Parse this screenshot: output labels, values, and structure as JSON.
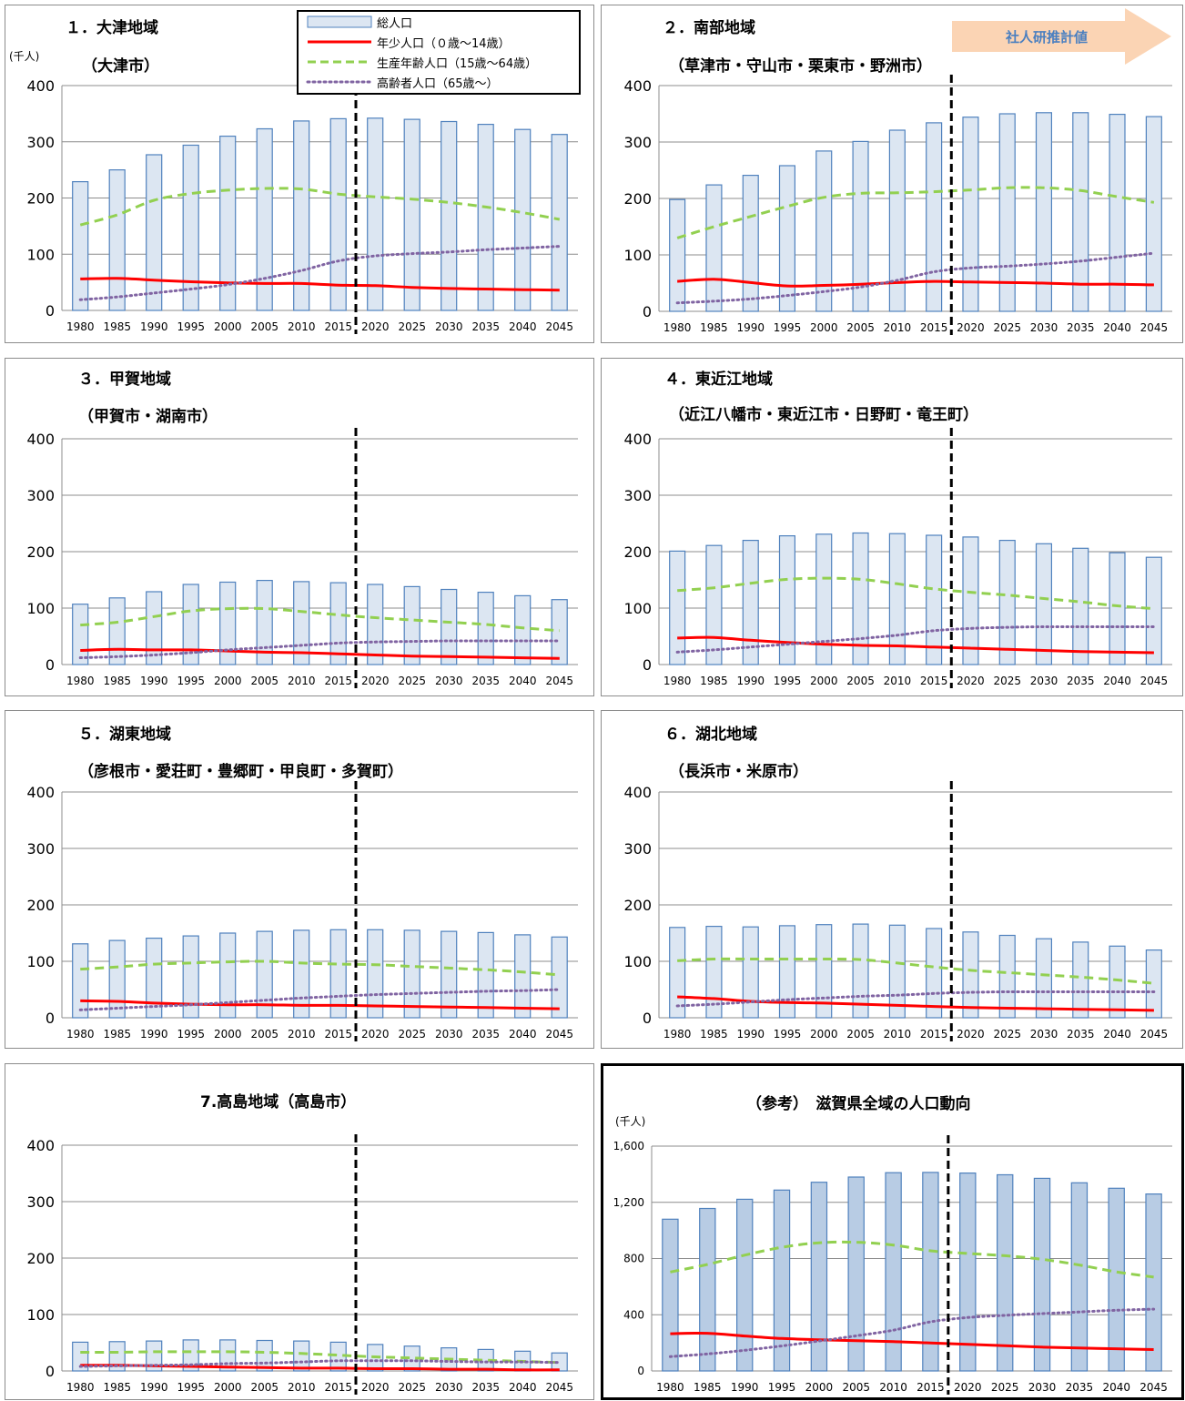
{
  "common": {
    "x_ticks": [
      "1980",
      "1985",
      "1990",
      "1995",
      "2000",
      "2005",
      "2010",
      "2015",
      "2020",
      "2025",
      "2030",
      "2035",
      "2040",
      "2045"
    ],
    "unit": "(千人)",
    "colors": {
      "bar_fill": "#dce6f2",
      "bar_stroke": "#4f81bd",
      "ref_bar_fill": "#b8cce4",
      "young": "#ff0000",
      "working": "#92d050",
      "elderly": "#8064a2"
    }
  },
  "legend": {
    "total": "総人口",
    "young": "年少人口（０歳～14歳）",
    "working": "生産年齢人口（15歳～64歳）",
    "elderly": "高齢者人口（65歳～）"
  },
  "projection_label": "社人研推計値",
  "chart_data": [
    {
      "type": "bar",
      "title": "１．大津地域",
      "subtitle": "（大津市）",
      "ylim": [
        0,
        400
      ],
      "yticks": [
        "0",
        "100",
        "200",
        "300",
        "400"
      ],
      "categories": [
        "1980",
        "1985",
        "1990",
        "1995",
        "2000",
        "2005",
        "2010",
        "2015",
        "2020",
        "2025",
        "2030",
        "2035",
        "2040",
        "2045"
      ],
      "series": [
        {
          "values": [
            229,
            250,
            277,
            294,
            310,
            323,
            337,
            341,
            342,
            340,
            336,
            331,
            322,
            313
          ]
        },
        {
          "values": [
            56,
            57,
            54,
            51,
            49,
            48,
            48,
            45,
            44,
            41,
            39,
            38,
            37,
            36
          ]
        },
        {
          "values": [
            152,
            170,
            196,
            208,
            214,
            217,
            216,
            207,
            202,
            198,
            192,
            184,
            174,
            162
          ]
        },
        {
          "values": [
            19,
            24,
            31,
            38,
            46,
            57,
            71,
            88,
            97,
            101,
            104,
            108,
            111,
            114
          ]
        }
      ]
    },
    {
      "type": "bar",
      "title": "２．南部地域",
      "subtitle": "（草津市・守山市・栗東市・野洲市）",
      "ylim": [
        0,
        400
      ],
      "yticks": [
        "0",
        "100",
        "200",
        "300",
        "400"
      ],
      "categories": [
        "1980",
        "1985",
        "1990",
        "1995",
        "2000",
        "2005",
        "2010",
        "2015",
        "2020",
        "2025",
        "2030",
        "2035",
        "2040",
        "2045"
      ],
      "series": [
        {
          "values": [
            198,
            224,
            241,
            258,
            284,
            301,
            321,
            334,
            344,
            350,
            352,
            352,
            349,
            345
          ]
        },
        {
          "values": [
            53,
            57,
            51,
            45,
            46,
            48,
            51,
            53,
            52,
            51,
            50,
            48,
            48,
            47
          ]
        },
        {
          "values": [
            130,
            150,
            168,
            186,
            202,
            209,
            210,
            212,
            215,
            219,
            219,
            214,
            203,
            193
          ]
        },
        {
          "values": [
            15,
            18,
            22,
            28,
            35,
            43,
            55,
            70,
            77,
            80,
            84,
            89,
            96,
            103
          ]
        }
      ]
    },
    {
      "type": "bar",
      "title": "３．甲賀地域",
      "subtitle": "（甲賀市・湖南市）",
      "ylim": [
        0,
        400
      ],
      "yticks": [
        "0",
        "100",
        "200",
        "300",
        "400"
      ],
      "categories": [
        "1980",
        "1985",
        "1990",
        "1995",
        "2000",
        "2005",
        "2010",
        "2015",
        "2020",
        "2025",
        "2030",
        "2035",
        "2040",
        "2045"
      ],
      "series": [
        {
          "values": [
            107,
            118,
            129,
            142,
            146,
            149,
            147,
            145,
            142,
            138,
            133,
            128,
            122,
            115
          ]
        },
        {
          "values": [
            25,
            27,
            26,
            26,
            24,
            22,
            21,
            19,
            17,
            15,
            14,
            13,
            12,
            11
          ]
        },
        {
          "values": [
            70,
            75,
            85,
            95,
            99,
            99,
            94,
            88,
            83,
            79,
            75,
            71,
            65,
            60
          ]
        },
        {
          "values": [
            12,
            14,
            17,
            21,
            26,
            30,
            34,
            38,
            40,
            41,
            42,
            42,
            42,
            42
          ]
        }
      ]
    },
    {
      "type": "bar",
      "title": "４．東近江地域",
      "subtitle": "（近江八幡市・東近江市・日野町・竜王町）",
      "ylim": [
        0,
        400
      ],
      "yticks": [
        "0",
        "100",
        "200",
        "300",
        "400"
      ],
      "categories": [
        "1980",
        "1985",
        "1990",
        "1995",
        "2000",
        "2005",
        "2010",
        "2015",
        "2020",
        "2025",
        "2030",
        "2035",
        "2040",
        "2045"
      ],
      "series": [
        {
          "values": [
            201,
            211,
            220,
            228,
            231,
            233,
            232,
            229,
            226,
            220,
            214,
            206,
            198,
            190
          ]
        },
        {
          "values": [
            47,
            48,
            43,
            39,
            36,
            34,
            33,
            31,
            29,
            27,
            25,
            23,
            22,
            21
          ]
        },
        {
          "values": [
            131,
            136,
            144,
            151,
            153,
            151,
            143,
            134,
            128,
            123,
            117,
            111,
            104,
            99
          ]
        },
        {
          "values": [
            22,
            26,
            31,
            36,
            41,
            46,
            52,
            60,
            64,
            66,
            67,
            67,
            67,
            67
          ]
        }
      ]
    },
    {
      "type": "bar",
      "title": "５．湖東地域",
      "subtitle": "（彦根市・愛荘町・豊郷町・甲良町・多賀町）",
      "ylim": [
        0,
        400
      ],
      "yticks": [
        "0",
        "100",
        "200",
        "300",
        "400"
      ],
      "categories": [
        "1980",
        "1985",
        "1990",
        "1995",
        "2000",
        "2005",
        "2010",
        "2015",
        "2020",
        "2025",
        "2030",
        "2035",
        "2040",
        "2045"
      ],
      "series": [
        {
          "values": [
            131,
            137,
            141,
            145,
            150,
            153,
            155,
            156,
            156,
            155,
            153,
            151,
            147,
            143
          ]
        },
        {
          "values": [
            30,
            29,
            26,
            24,
            23,
            23,
            22,
            22,
            21,
            20,
            19,
            18,
            17,
            16
          ]
        },
        {
          "values": [
            86,
            90,
            95,
            97,
            99,
            100,
            97,
            95,
            94,
            91,
            88,
            85,
            81,
            76
          ]
        },
        {
          "values": [
            14,
            17,
            20,
            23,
            27,
            31,
            35,
            38,
            41,
            43,
            45,
            47,
            48,
            50
          ]
        }
      ]
    },
    {
      "type": "bar",
      "title": "６．湖北地域",
      "subtitle": "（長浜市・米原市）",
      "ylim": [
        0,
        400
      ],
      "yticks": [
        "0",
        "100",
        "200",
        "300",
        "400"
      ],
      "categories": [
        "1980",
        "1985",
        "1990",
        "1995",
        "2000",
        "2005",
        "2010",
        "2015",
        "2020",
        "2025",
        "2030",
        "2035",
        "2040",
        "2045"
      ],
      "series": [
        {
          "values": [
            160,
            162,
            161,
            163,
            165,
            166,
            164,
            158,
            152,
            146,
            140,
            134,
            127,
            120
          ]
        },
        {
          "values": [
            37,
            34,
            29,
            27,
            26,
            24,
            22,
            20,
            18,
            17,
            16,
            15,
            14,
            13
          ]
        },
        {
          "values": [
            101,
            104,
            104,
            104,
            104,
            103,
            97,
            90,
            84,
            80,
            76,
            72,
            67,
            61
          ]
        },
        {
          "values": [
            21,
            24,
            28,
            32,
            35,
            38,
            40,
            43,
            45,
            46,
            46,
            46,
            46,
            46
          ]
        }
      ]
    },
    {
      "type": "bar",
      "title": "7.高島地域（高島市）",
      "ylim": [
        0,
        400
      ],
      "yticks": [
        "0",
        "100",
        "200",
        "300",
        "400"
      ],
      "categories": [
        "1980",
        "1985",
        "1990",
        "1995",
        "2000",
        "2005",
        "2010",
        "2015",
        "2020",
        "2025",
        "2030",
        "2035",
        "2040",
        "2045"
      ],
      "series": [
        {
          "values": [
            51,
            52,
            53,
            55,
            55,
            54,
            53,
            51,
            47,
            44,
            41,
            38,
            35,
            32
          ]
        },
        {
          "values": [
            10,
            10,
            9,
            8,
            7,
            6,
            5,
            5,
            4,
            4,
            3,
            3,
            2,
            2
          ]
        },
        {
          "values": [
            33,
            33,
            34,
            34,
            34,
            33,
            31,
            28,
            25,
            23,
            21,
            19,
            17,
            15
          ]
        },
        {
          "values": [
            8,
            9,
            10,
            11,
            13,
            14,
            16,
            18,
            18,
            18,
            17,
            16,
            16,
            15
          ]
        }
      ]
    },
    {
      "type": "bar",
      "title": "（参考）　滋賀県全域の人口動向",
      "ylim": [
        0,
        1600
      ],
      "yticks": [
        "0",
        "400",
        "800",
        "1,200",
        "1,600"
      ],
      "categories": [
        "1980",
        "1985",
        "1990",
        "1995",
        "2000",
        "2005",
        "2010",
        "2015",
        "2020",
        "2025",
        "2030",
        "2035",
        "2040",
        "2045"
      ],
      "series": [
        {
          "values": [
            1080,
            1156,
            1222,
            1287,
            1343,
            1380,
            1411,
            1413,
            1408,
            1396,
            1371,
            1339,
            1300,
            1259
          ]
        },
        {
          "values": [
            265,
            268,
            249,
            231,
            222,
            215,
            209,
            199,
            190,
            180,
            170,
            163,
            158,
            152
          ]
        },
        {
          "values": [
            704,
            758,
            824,
            880,
            912,
            916,
            896,
            855,
            836,
            820,
            795,
            754,
            705,
            668
          ]
        },
        {
          "values": [
            102,
            121,
            147,
            178,
            213,
            250,
            290,
            350,
            380,
            396,
            408,
            420,
            432,
            440
          ]
        }
      ]
    }
  ]
}
